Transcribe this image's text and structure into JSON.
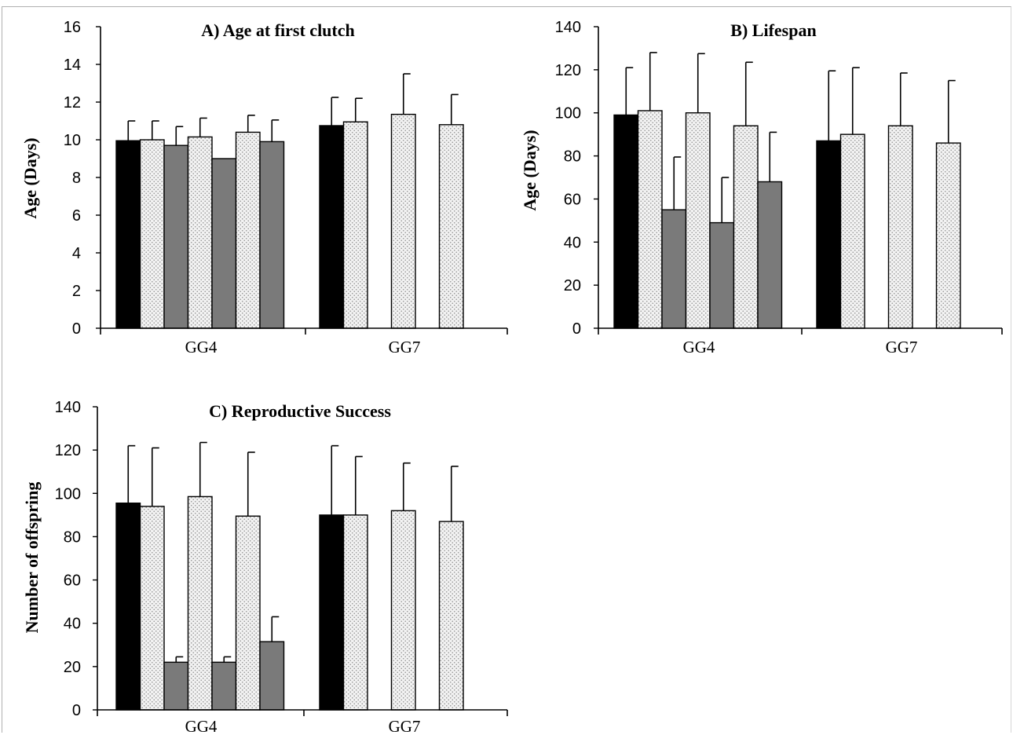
{
  "colors": {
    "control": "#000000",
    "treatment": "#f1f1f1",
    "gray": "#7a7a7a",
    "dots": "#9a9a9a"
  },
  "chart_data": [
    {
      "type": "bar",
      "title": "A) Age at first clutch",
      "ylabel": "Age (Days)",
      "ylim": [
        0,
        16
      ],
      "yticks": [
        0,
        2,
        4,
        6,
        8,
        10,
        12,
        14,
        16
      ],
      "groups": [
        {
          "label": "GG4",
          "bars": [
            {
              "fill": "black",
              "value": 9.95,
              "err": 1.05
            },
            {
              "fill": "dotted",
              "value": 10.0,
              "err": 1.0
            },
            {
              "fill": "gray",
              "value": 9.7,
              "err": 1.0
            },
            {
              "fill": "dotted",
              "value": 10.15,
              "err": 1.0
            },
            {
              "fill": "gray",
              "value": 9.0,
              "err": 0
            },
            {
              "fill": "dotted",
              "value": 10.4,
              "err": 0.9
            },
            {
              "fill": "gray",
              "value": 9.9,
              "err": 1.15
            }
          ]
        },
        {
          "label": "GG7",
          "bars": [
            {
              "fill": "black",
              "value": 10.75,
              "err": 1.5
            },
            {
              "fill": "dotted",
              "value": 10.95,
              "err": 1.25
            },
            {
              "fill": "none",
              "value": 0,
              "err": 0
            },
            {
              "fill": "dotted",
              "value": 11.35,
              "err": 2.15
            },
            {
              "fill": "none",
              "value": 0,
              "err": 0
            },
            {
              "fill": "dotted",
              "value": 10.8,
              "err": 1.6
            }
          ]
        }
      ]
    },
    {
      "type": "bar",
      "title": "B) Lifespan",
      "ylabel": "Age (Days)",
      "ylim": [
        0,
        140
      ],
      "yticks": [
        0,
        20,
        40,
        60,
        80,
        100,
        120,
        140
      ],
      "groups": [
        {
          "label": "GG4",
          "bars": [
            {
              "fill": "black",
              "value": 99,
              "err": 22
            },
            {
              "fill": "dotted",
              "value": 101,
              "err": 27
            },
            {
              "fill": "gray",
              "value": 55,
              "err": 24.5
            },
            {
              "fill": "dotted",
              "value": 100,
              "err": 27.5
            },
            {
              "fill": "gray",
              "value": 49,
              "err": 21
            },
            {
              "fill": "dotted",
              "value": 94,
              "err": 29.5
            },
            {
              "fill": "gray",
              "value": 68,
              "err": 23
            }
          ]
        },
        {
          "label": "GG7",
          "bars": [
            {
              "fill": "black",
              "value": 87,
              "err": 32.5
            },
            {
              "fill": "dotted",
              "value": 90,
              "err": 31
            },
            {
              "fill": "none",
              "value": 0,
              "err": 0
            },
            {
              "fill": "dotted",
              "value": 94,
              "err": 24.5
            },
            {
              "fill": "none",
              "value": 0,
              "err": 0
            },
            {
              "fill": "dotted",
              "value": 86,
              "err": 29
            }
          ]
        }
      ]
    },
    {
      "type": "bar",
      "title": "C) Reproductive Success",
      "ylabel": "Number of offspring",
      "ylim": [
        0,
        140
      ],
      "yticks": [
        0,
        20,
        40,
        60,
        80,
        100,
        120,
        140
      ],
      "groups": [
        {
          "label": "GG4",
          "bars": [
            {
              "fill": "black",
              "value": 95.5,
              "err": 26.5
            },
            {
              "fill": "dotted",
              "value": 94,
              "err": 27
            },
            {
              "fill": "gray",
              "value": 22,
              "err": 2.5
            },
            {
              "fill": "dotted",
              "value": 98.5,
              "err": 25
            },
            {
              "fill": "gray",
              "value": 22,
              "err": 2.5
            },
            {
              "fill": "dotted",
              "value": 89.5,
              "err": 29.5
            },
            {
              "fill": "gray",
              "value": 31.5,
              "err": 11.5
            }
          ]
        },
        {
          "label": "GG7",
          "bars": [
            {
              "fill": "black",
              "value": 90,
              "err": 32
            },
            {
              "fill": "dotted",
              "value": 90,
              "err": 27
            },
            {
              "fill": "none",
              "value": 0,
              "err": 0
            },
            {
              "fill": "dotted",
              "value": 92,
              "err": 22
            },
            {
              "fill": "none",
              "value": 0,
              "err": 0
            },
            {
              "fill": "dotted",
              "value": 87,
              "err": 25.5
            }
          ]
        }
      ]
    }
  ]
}
